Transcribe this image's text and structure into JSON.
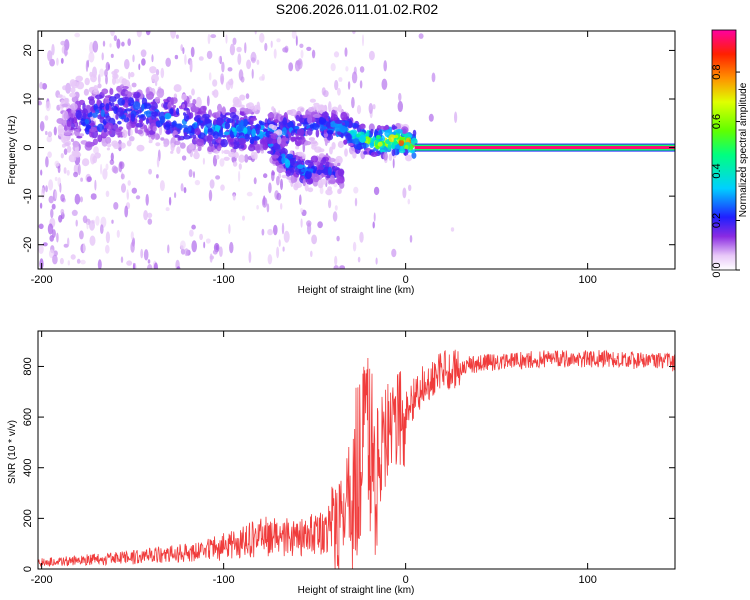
{
  "figure_title": "S206.2026.011.01.02.R02",
  "chart_data": [
    {
      "type": "heatmap",
      "xlabel": "Height of straight line (km)",
      "ylabel": "Frequency (Hz)",
      "xlim": [
        -202,
        148
      ],
      "ylim": [
        -25,
        24
      ],
      "x_ticks": [
        -200,
        -100,
        0,
        100
      ],
      "y_ticks": [
        -20,
        -10,
        0,
        10,
        20
      ],
      "colorbar": {
        "label": "Normalized spectral amplitude",
        "range": [
          0,
          0.97
        ],
        "ticks": [
          0.0,
          0.2,
          0.4,
          0.6,
          0.8
        ],
        "tick_labels": [
          "0.0",
          "0.2",
          "0.4",
          "0.6",
          "0.8"
        ],
        "colormap": "rainbow"
      },
      "ridges": [
        {
          "description": "dispersed spectral ridge, upper branch",
          "x": [
            -190,
            -170,
            -150,
            -130,
            -110,
            -90,
            -70,
            -50,
            -35,
            -25,
            -15,
            -5,
            5
          ],
          "y": [
            5,
            6,
            8,
            6,
            4,
            3.5,
            3,
            4.5,
            4,
            2,
            1,
            1.5,
            0.5
          ],
          "amplitude": [
            0.1,
            0.3,
            0.25,
            0.3,
            0.3,
            0.35,
            0.3,
            0.25,
            0.35,
            0.5,
            0.7,
            0.8,
            0.85
          ]
        },
        {
          "description": "dispersed spectral ridge, lower branch",
          "x": [
            -75,
            -65,
            -55,
            -45,
            -35
          ],
          "y": [
            1,
            -3,
            -5,
            -4,
            -6
          ],
          "amplitude": [
            0.3,
            0.35,
            0.3,
            0.25,
            0.2
          ]
        },
        {
          "description": "monochromatic line",
          "x": [
            5,
            148
          ],
          "y": [
            0,
            0
          ],
          "amplitude": [
            0.97,
            0.97
          ]
        }
      ]
    },
    {
      "type": "line",
      "xlabel": "Height of straight line (km)",
      "ylabel": "SNR (10 * v/v)",
      "xlim": [
        -202,
        148
      ],
      "ylim": [
        0,
        940
      ],
      "x_ticks": [
        -200,
        -100,
        0,
        100
      ],
      "y_ticks": [
        0,
        200,
        400,
        600,
        800
      ],
      "series": [
        {
          "color": "#f03c3c",
          "envelope_x": [
            -202,
            -150,
            -110,
            -90,
            -80,
            -60,
            -45,
            -38,
            -30,
            -24,
            -18,
            -12,
            -8,
            -4,
            0,
            5,
            10,
            20,
            30,
            50,
            80,
            110,
            148
          ],
          "envelope_y": [
            20,
            35,
            55,
            80,
            100,
            95,
            110,
            180,
            300,
            450,
            420,
            500,
            540,
            575,
            620,
            680,
            730,
            780,
            800,
            820,
            830,
            830,
            815
          ]
        }
      ]
    }
  ]
}
